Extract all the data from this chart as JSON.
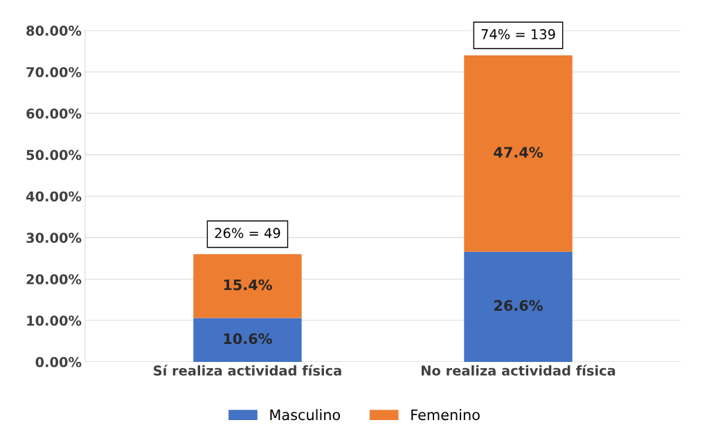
{
  "chart_data": {
    "type": "bar",
    "stacked": true,
    "categories": [
      "Sí realiza actividad física",
      "No realiza actividad física"
    ],
    "series": [
      {
        "name": "Masculino",
        "color": "#4472c4",
        "values": [
          10.6,
          26.6
        ],
        "value_labels": [
          "10.6%",
          "26.6%"
        ]
      },
      {
        "name": "Femenino",
        "color": "#ed7d31",
        "values": [
          15.4,
          47.4
        ],
        "value_labels": [
          "15.4%",
          "47.4%"
        ]
      }
    ],
    "totals": [
      "26% = 49",
      "74% = 139"
    ],
    "ylim": [
      0,
      80
    ],
    "yticks": [
      {
        "value": 0,
        "label": "0.00%"
      },
      {
        "value": 10,
        "label": "10.00%"
      },
      {
        "value": 20,
        "label": "20.00%"
      },
      {
        "value": 30,
        "label": "30.00%"
      },
      {
        "value": 40,
        "label": "40.00%"
      },
      {
        "value": 50,
        "label": "50.00%"
      },
      {
        "value": 60,
        "label": "60.00%"
      },
      {
        "value": 70,
        "label": "70.00%"
      },
      {
        "value": 80,
        "label": "80.00%"
      }
    ],
    "grid": "y",
    "legend": "bottom"
  }
}
